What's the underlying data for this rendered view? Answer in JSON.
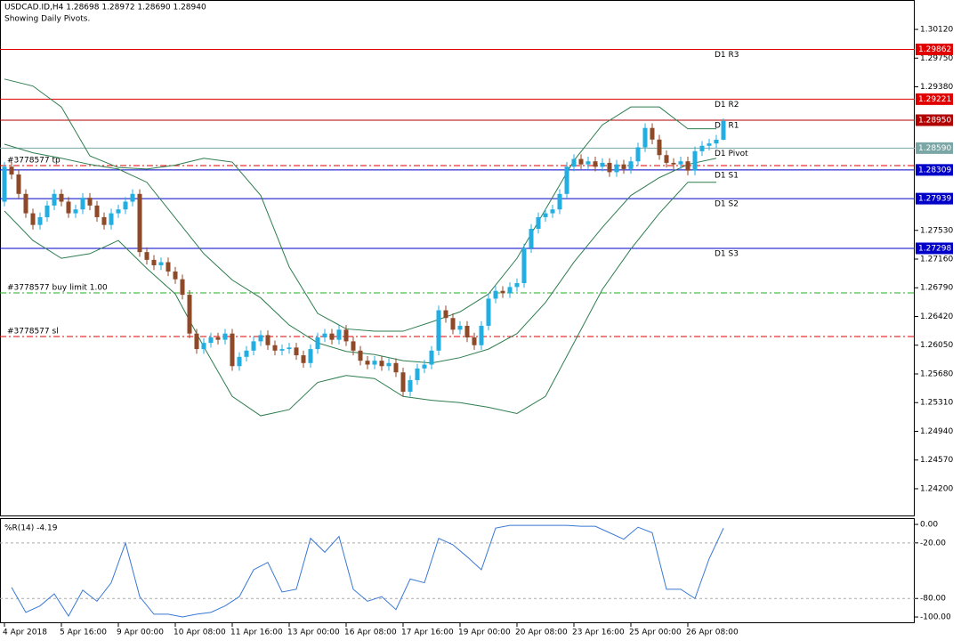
{
  "chart_data": {
    "type": "candlestick",
    "title": "USDCAD.ID,H4  1.28698 1.28972 1.28690 1.28940",
    "subtitle": "Showing Daily Pivots.",
    "time_labels": [
      "4 Apr 2018",
      "5 Apr 16:00",
      "9 Apr 00:00",
      "10 Apr 08:00",
      "11 Apr 16:00",
      "13 Apr 00:00",
      "16 Apr 08:00",
      "17 Apr 16:00",
      "19 Apr 00:00",
      "20 Apr 08:00",
      "23 Apr 16:00",
      "25 Apr 00:00",
      "26 Apr 08:00"
    ],
    "up_color": "#22aee0",
    "down_color": "#8e4a28",
    "candles": [
      [
        1.279,
        1.2841,
        1.2784,
        1.2835
      ],
      [
        1.2835,
        1.2841,
        1.2819,
        1.2825
      ],
      [
        1.2825,
        1.2831,
        1.2794,
        1.28
      ],
      [
        1.28,
        1.2806,
        1.2769,
        1.2775
      ],
      [
        1.2775,
        1.2781,
        1.2754,
        1.276
      ],
      [
        1.276,
        1.2776,
        1.2754,
        1.277
      ],
      [
        1.277,
        1.2791,
        1.2764,
        1.2785
      ],
      [
        1.2785,
        1.2806,
        1.2779,
        1.28
      ],
      [
        1.28,
        1.2806,
        1.2784,
        1.279
      ],
      [
        1.279,
        1.2796,
        1.2769,
        1.2775
      ],
      [
        1.2775,
        1.2786,
        1.2769,
        1.278
      ],
      [
        1.278,
        1.2801,
        1.2774,
        1.2795
      ],
      [
        1.2795,
        1.2801,
        1.2779,
        1.2785
      ],
      [
        1.2785,
        1.2791,
        1.2764,
        1.277
      ],
      [
        1.277,
        1.2776,
        1.2754,
        1.276
      ],
      [
        1.276,
        1.2781,
        1.2754,
        1.2775
      ],
      [
        1.2775,
        1.2786,
        1.2769,
        1.278
      ],
      [
        1.278,
        1.2796,
        1.2774,
        1.279
      ],
      [
        1.279,
        1.2806,
        1.2784,
        1.28
      ],
      [
        1.28,
        1.2806,
        1.2719,
        1.2725
      ],
      [
        1.2725,
        1.2731,
        1.2709,
        1.2715
      ],
      [
        1.2715,
        1.2721,
        1.2702,
        1.2708
      ],
      [
        1.2708,
        1.2718,
        1.2702,
        1.2712
      ],
      [
        1.2712,
        1.2718,
        1.2694,
        1.27
      ],
      [
        1.27,
        1.2706,
        1.2684,
        1.269
      ],
      [
        1.269,
        1.2696,
        1.2664,
        1.267
      ],
      [
        1.267,
        1.2676,
        1.2614,
        1.262
      ],
      [
        1.262,
        1.2626,
        1.2594,
        1.26
      ],
      [
        1.26,
        1.2614,
        1.2594,
        1.2608
      ],
      [
        1.2608,
        1.2621,
        1.2602,
        1.2615
      ],
      [
        1.2615,
        1.2621,
        1.2606,
        1.2612
      ],
      [
        1.2612,
        1.2626,
        1.2606,
        1.262
      ],
      [
        1.262,
        1.2626,
        1.2572,
        1.2578
      ],
      [
        1.2578,
        1.2596,
        1.2572,
        1.259
      ],
      [
        1.259,
        1.2604,
        1.2584,
        1.2598
      ],
      [
        1.2598,
        1.2616,
        1.2592,
        1.261
      ],
      [
        1.261,
        1.2624,
        1.2604,
        1.2618
      ],
      [
        1.2618,
        1.2624,
        1.2599,
        1.2605
      ],
      [
        1.2605,
        1.2611,
        1.2592,
        1.2598
      ],
      [
        1.2598,
        1.2606,
        1.2592,
        1.26
      ],
      [
        1.26,
        1.2608,
        1.2594,
        1.2602
      ],
      [
        1.2602,
        1.2608,
        1.2586,
        1.2592
      ],
      [
        1.2592,
        1.2598,
        1.2576,
        1.2582
      ],
      [
        1.2582,
        1.2606,
        1.2576,
        1.26
      ],
      [
        1.26,
        1.2621,
        1.2594,
        1.2615
      ],
      [
        1.2615,
        1.2626,
        1.2609,
        1.262
      ],
      [
        1.262,
        1.2626,
        1.2606,
        1.2612
      ],
      [
        1.2612,
        1.2631,
        1.2606,
        1.2625
      ],
      [
        1.2625,
        1.2631,
        1.2604,
        1.261
      ],
      [
        1.261,
        1.2616,
        1.2592,
        1.2598
      ],
      [
        1.2598,
        1.2604,
        1.2579,
        1.2585
      ],
      [
        1.2585,
        1.2591,
        1.2574,
        1.258
      ],
      [
        1.258,
        1.2591,
        1.2574,
        1.2585
      ],
      [
        1.2585,
        1.2591,
        1.2572,
        1.2578
      ],
      [
        1.2578,
        1.2588,
        1.2572,
        1.2582
      ],
      [
        1.2582,
        1.2588,
        1.2564,
        1.257
      ],
      [
        1.257,
        1.2576,
        1.2539,
        1.2545
      ],
      [
        1.2545,
        1.2566,
        1.2539,
        1.256
      ],
      [
        1.256,
        1.2581,
        1.2554,
        1.2575
      ],
      [
        1.2575,
        1.2586,
        1.2569,
        1.258
      ],
      [
        1.258,
        1.2604,
        1.2574,
        1.2598
      ],
      [
        1.2598,
        1.2656,
        1.2592,
        1.265
      ],
      [
        1.265,
        1.2656,
        1.2634,
        1.264
      ],
      [
        1.264,
        1.2646,
        1.2619,
        1.2625
      ],
      [
        1.2625,
        1.2636,
        1.2619,
        1.263
      ],
      [
        1.263,
        1.2636,
        1.2609,
        1.2615
      ],
      [
        1.2615,
        1.2621,
        1.2599,
        1.2605
      ],
      [
        1.2605,
        1.2636,
        1.2599,
        1.263
      ],
      [
        1.263,
        1.2671,
        1.2624,
        1.2665
      ],
      [
        1.2665,
        1.2681,
        1.2659,
        1.2675
      ],
      [
        1.2675,
        1.2681,
        1.2666,
        1.2672
      ],
      [
        1.2672,
        1.2686,
        1.2666,
        1.268
      ],
      [
        1.268,
        1.2691,
        1.2674,
        1.2685
      ],
      [
        1.2685,
        1.2736,
        1.2679,
        1.273
      ],
      [
        1.273,
        1.2761,
        1.2724,
        1.2755
      ],
      [
        1.2755,
        1.2776,
        1.2749,
        1.277
      ],
      [
        1.277,
        1.2781,
        1.2764,
        1.2775
      ],
      [
        1.2775,
        1.2786,
        1.2769,
        1.278
      ],
      [
        1.278,
        1.2806,
        1.2774,
        1.28
      ],
      [
        1.28,
        1.2841,
        1.2794,
        1.2835
      ],
      [
        1.2835,
        1.2851,
        1.2829,
        1.2845
      ],
      [
        1.2845,
        1.2851,
        1.2832,
        1.2838
      ],
      [
        1.2838,
        1.2848,
        1.2832,
        1.2842
      ],
      [
        1.2842,
        1.2848,
        1.2829,
        1.2835
      ],
      [
        1.2835,
        1.2846,
        1.2829,
        1.284
      ],
      [
        1.284,
        1.2846,
        1.2822,
        1.2828
      ],
      [
        1.2828,
        1.2844,
        1.2822,
        1.2838
      ],
      [
        1.2838,
        1.2844,
        1.2826,
        1.2832
      ],
      [
        1.2832,
        1.2848,
        1.2826,
        1.2842
      ],
      [
        1.2842,
        1.2866,
        1.2836,
        1.286
      ],
      [
        1.286,
        1.2891,
        1.2854,
        1.2885
      ],
      [
        1.2885,
        1.2891,
        1.2864,
        1.287
      ],
      [
        1.287,
        1.2876,
        1.2844,
        1.285
      ],
      [
        1.285,
        1.2856,
        1.2834,
        1.284
      ],
      [
        1.284,
        1.2846,
        1.2832,
        1.2838
      ],
      [
        1.2838,
        1.2848,
        1.2832,
        1.2842
      ],
      [
        1.2842,
        1.2848,
        1.2824,
        1.283
      ],
      [
        1.283,
        1.2861,
        1.2824,
        1.2855
      ],
      [
        1.2855,
        1.2868,
        1.2849,
        1.2862
      ],
      [
        1.2862,
        1.2871,
        1.2856,
        1.2865
      ],
      [
        1.2865,
        1.2876,
        1.2859,
        1.28698
      ],
      [
        1.28698,
        1.28972,
        1.2869,
        1.2894
      ]
    ],
    "ylim": [
      1.23844,
      1.30499
    ],
    "yticks": [
      {
        "value": 1.3012,
        "label": "1.30120"
      },
      {
        "value": 1.2975,
        "label": "1.29750"
      },
      {
        "value": 1.2938,
        "label": "1.29380"
      },
      {
        "value": 1.2753,
        "label": "1.27530"
      },
      {
        "value": 1.2716,
        "label": "1.27160"
      },
      {
        "value": 1.2679,
        "label": "1.26790"
      },
      {
        "value": 1.2642,
        "label": "1.26420"
      },
      {
        "value": 1.2605,
        "label": "1.26050"
      },
      {
        "value": 1.2568,
        "label": "1.25680"
      },
      {
        "value": 1.2531,
        "label": "1.25310"
      },
      {
        "value": 1.2494,
        "label": "1.24940"
      },
      {
        "value": 1.2457,
        "label": "1.24570"
      },
      {
        "value": 1.242,
        "label": "1.24200"
      }
    ],
    "levels": [
      {
        "name": "D1 R3",
        "value": 1.29862,
        "label": "1.29862",
        "color": "#e00000"
      },
      {
        "name": "D1 R2",
        "value": 1.29221,
        "label": "1.29221",
        "color": "#e00000"
      },
      {
        "name": "D1 R1",
        "value": 1.2895,
        "label": "1.28950",
        "color": "#b00000"
      },
      {
        "name": "D1 Pivot",
        "value": 1.2859,
        "label": "1.28590",
        "color": "#7aa6a6"
      },
      {
        "name": "D1 S1",
        "value": 1.28309,
        "label": "1.28309",
        "color": "#0000c8"
      },
      {
        "name": "D1 S2",
        "value": 1.27939,
        "label": "1.27939",
        "color": "#0000c8"
      },
      {
        "name": "D1 S3",
        "value": 1.27298,
        "label": "1.27298",
        "color": "#0000c8"
      }
    ],
    "orders": [
      {
        "name": "#3778577 tp",
        "value": 1.28365,
        "color": "#e00000"
      },
      {
        "name": "#3778577 buy limit 1.00",
        "value": 1.26724,
        "color": "#22b022"
      },
      {
        "name": "#3778577 sl",
        "value": 1.26162,
        "color": "#e00000"
      }
    ],
    "bands": {
      "color": "#2e7d4f",
      "upper": [
        1.2948,
        1.2939,
        1.2912,
        1.2849,
        1.2834,
        1.2832,
        1.2837,
        1.2846,
        1.2841,
        1.2798,
        1.2706,
        1.2646,
        1.2626,
        1.2623,
        1.2623,
        1.2635,
        1.2648,
        1.2671,
        1.2717,
        1.278,
        1.2843,
        1.2889,
        1.2912,
        1.2912,
        1.2884,
        1.2884
      ],
      "middle": [
        1.2864,
        1.2853,
        1.2846,
        1.2838,
        1.2832,
        1.2815,
        1.2769,
        1.2723,
        1.2689,
        1.2666,
        1.2631,
        1.2608,
        1.2597,
        1.2593,
        1.2585,
        1.2582,
        1.2589,
        1.26,
        1.262,
        1.266,
        1.2712,
        1.2757,
        1.2798,
        1.2821,
        1.2838,
        1.2846
      ],
      "lower": [
        1.2778,
        1.274,
        1.2717,
        1.2723,
        1.274,
        1.2704,
        1.2671,
        1.2603,
        1.2539,
        1.2514,
        1.2522,
        1.2557,
        1.2566,
        1.2562,
        1.2539,
        1.2534,
        1.2531,
        1.2525,
        1.2517,
        1.2539,
        1.2608,
        1.2677,
        1.2729,
        1.2775,
        1.2815,
        1.2815
      ]
    },
    "indicator": {
      "title": "%R(14) -4.19",
      "color": "#3a78d4",
      "values": [
        -68,
        -95,
        -88,
        -75,
        -99,
        -71,
        -83,
        -63,
        -20,
        -78,
        -97,
        -97,
        -100,
        -97,
        -95,
        -88,
        -78,
        -49,
        -41,
        -73,
        -70,
        -15,
        -30,
        -13,
        -70,
        -83,
        -78,
        -92,
        -59,
        -63,
        -15,
        -22,
        -35,
        -49,
        -4,
        -1,
        -1,
        -1,
        -1,
        -1,
        -2,
        -2,
        -9,
        -16,
        -3,
        -9,
        -70,
        -70,
        -80,
        -37,
        -4.19
      ],
      "ylim": [
        -106.7,
        5.8
      ],
      "yticks": [
        {
          "value": 0,
          "label": "0.00"
        },
        {
          "value": -20,
          "label": "-20.00"
        },
        {
          "value": -80,
          "label": "-80.00"
        },
        {
          "value": -100,
          "label": "-100.00"
        }
      ],
      "levels": [
        -20,
        -80
      ]
    }
  }
}
